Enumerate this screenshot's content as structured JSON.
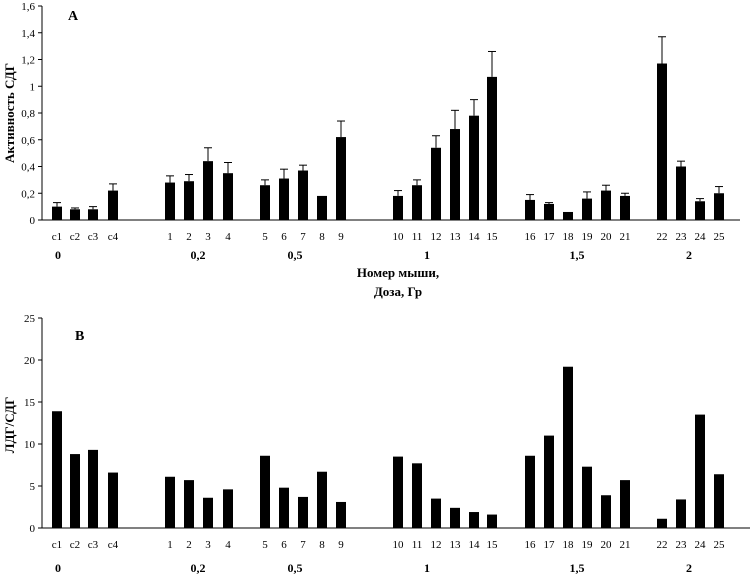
{
  "chart_data": [
    {
      "type": "bar",
      "panel_label": "A",
      "ylabel": "Активность СДГ",
      "xlabel_line1": "Номер мыши,",
      "xlabel_line2": "Доза, Гр",
      "ylim": [
        0,
        1.6
      ],
      "yticks": [
        "0",
        "0,2",
        "0,4",
        "0,6",
        "0,8",
        "1",
        "1,2",
        "1,4",
        "1,6"
      ],
      "categories": [
        "c1",
        "c2",
        "c3",
        "c4",
        "1",
        "2",
        "3",
        "4",
        "5",
        "6",
        "7",
        "8",
        "9",
        "10",
        "11",
        "12",
        "13",
        "14",
        "15",
        "16",
        "17",
        "18",
        "19",
        "20",
        "21",
        "22",
        "23",
        "24",
        "25"
      ],
      "values": [
        0.1,
        0.08,
        0.08,
        0.22,
        0.28,
        0.29,
        0.44,
        0.35,
        0.26,
        0.31,
        0.37,
        0.18,
        0.62,
        0.18,
        0.26,
        0.54,
        0.68,
        0.78,
        1.07,
        0.15,
        0.12,
        0.06,
        0.16,
        0.22,
        0.18,
        1.17,
        0.4,
        0.14,
        0.2
      ],
      "errors": [
        0.03,
        0.01,
        0.02,
        0.05,
        0.05,
        0.05,
        0.1,
        0.08,
        0.04,
        0.07,
        0.04,
        0.0,
        0.12,
        0.04,
        0.04,
        0.09,
        0.14,
        0.12,
        0.19,
        0.04,
        0.01,
        0.0,
        0.05,
        0.04,
        0.02,
        0.2,
        0.04,
        0.02,
        0.05
      ],
      "groups": [
        "0",
        "0,2",
        "0,5",
        "1",
        "1,5",
        "2"
      ],
      "grid": false
    },
    {
      "type": "bar",
      "panel_label": "B",
      "ylabel": "ЛДГ/СДГ",
      "ylim": [
        0,
        25
      ],
      "yticks": [
        "0",
        "5",
        "10",
        "15",
        "20",
        "25"
      ],
      "categories": [
        "c1",
        "c2",
        "c3",
        "c4",
        "1",
        "2",
        "3",
        "4",
        "5",
        "6",
        "7",
        "8",
        "9",
        "10",
        "11",
        "12",
        "13",
        "14",
        "15",
        "16",
        "17",
        "18",
        "19",
        "20",
        "21",
        "22",
        "23",
        "24",
        "25"
      ],
      "values": [
        13.9,
        8.8,
        9.3,
        6.6,
        6.1,
        5.7,
        3.6,
        4.6,
        8.6,
        4.8,
        3.7,
        6.7,
        3.1,
        8.5,
        7.7,
        3.5,
        2.4,
        1.9,
        1.6,
        8.6,
        11.0,
        19.2,
        7.3,
        3.9,
        5.7,
        1.1,
        3.4,
        13.5,
        6.4
      ],
      "groups": [
        "0",
        "0,2",
        "0,5",
        "1",
        "1,5",
        "2"
      ],
      "grid": false
    }
  ]
}
